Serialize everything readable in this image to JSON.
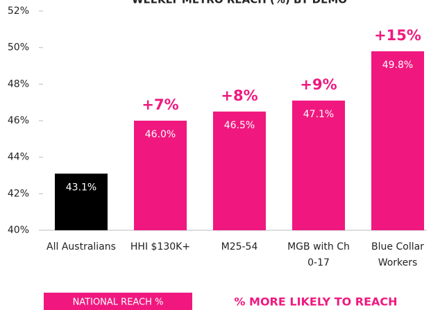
{
  "chart_data": {
    "type": "bar",
    "title": "WEEKLY METRO REACH (%) BY DEMO",
    "categories": [
      "All Australians",
      "HHI $130K+",
      "M25-54",
      "MGB with Ch\n0-17",
      "Blue Collar\nWorkers"
    ],
    "series": [
      {
        "name": "NATIONAL REACH %",
        "color": "#f0187f",
        "colors": [
          "#000000",
          "#f0187f",
          "#f0187f",
          "#f0187f",
          "#f0187f"
        ],
        "values": [
          43.1,
          46.0,
          46.5,
          47.1,
          49.8
        ],
        "value_labels": [
          "43.1%",
          "46.0%",
          "46.5%",
          "47.1%",
          "49.8%"
        ]
      }
    ],
    "annotations": [
      null,
      "+7%",
      "+8%",
      "+9%",
      "+15%"
    ],
    "annotations_label": "% MORE LIKELY TO REACH",
    "annotation_color": "#f0187f",
    "ylim": [
      40,
      52
    ],
    "yticks": [
      {
        "value": 40,
        "label": "40%"
      },
      {
        "value": 42,
        "label": "42%"
      },
      {
        "value": 44,
        "label": "44%"
      },
      {
        "value": 46,
        "label": "46%"
      },
      {
        "value": 48,
        "label": "48%"
      },
      {
        "value": 50,
        "label": "50%"
      },
      {
        "value": 52,
        "label": "52%"
      }
    ],
    "grid": false
  }
}
